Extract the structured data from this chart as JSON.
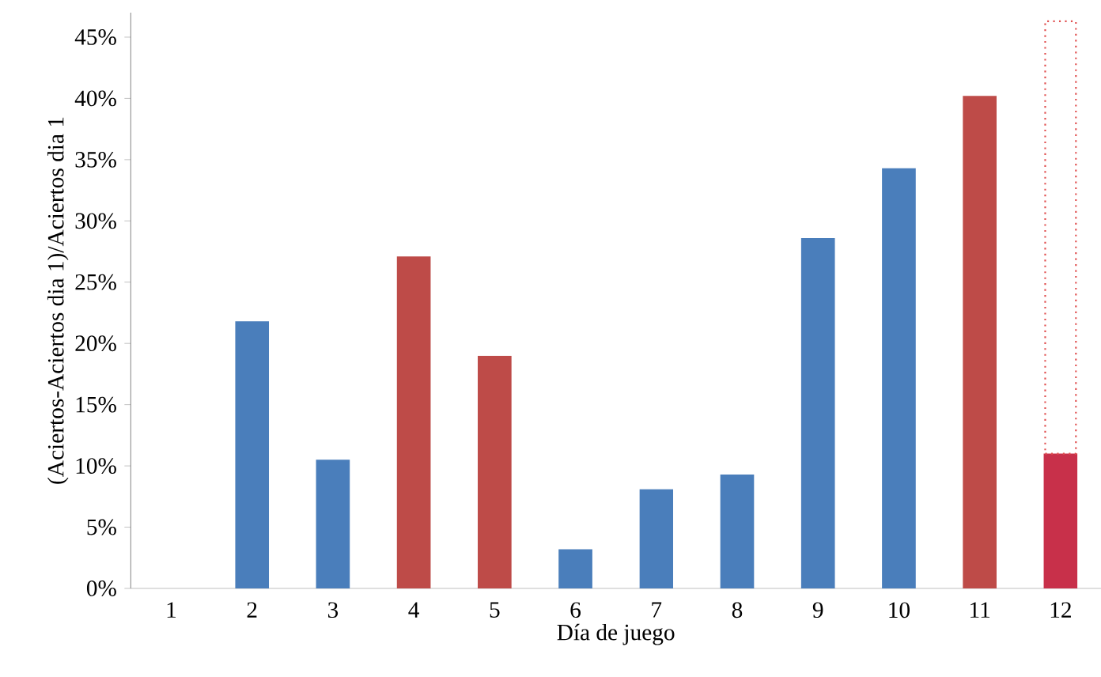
{
  "chart_data": {
    "type": "bar",
    "stacked": true,
    "xlabel": "Día de juego",
    "ylabel": "(Aciertos-Aciertos dia 1)/Aciertos dia 1",
    "categories": [
      "1",
      "2",
      "3",
      "4",
      "5",
      "6",
      "7",
      "8",
      "9",
      "10",
      "11",
      "12"
    ],
    "series": [
      {
        "colors": [
          "#4a7ebb",
          "#4a7ebb",
          "#4a7ebb",
          "#be4b48",
          "#be4b48",
          "#4a7ebb",
          "#4a7ebb",
          "#4a7ebb",
          "#4a7ebb",
          "#4a7ebb",
          "#be4b48",
          "#c8304a"
        ],
        "values": [
          0,
          21.8,
          10.5,
          27.1,
          19.0,
          3.2,
          8.1,
          9.3,
          28.6,
          34.3,
          40.2,
          11.0
        ]
      },
      {
        "color": "#e05050",
        "line_style": "dotted",
        "values": [
          null,
          null,
          null,
          null,
          null,
          null,
          null,
          null,
          null,
          null,
          null,
          35.3
        ]
      }
    ],
    "ylim": [
      0,
      47
    ],
    "yticks": [
      {
        "value": 0,
        "label": "0%"
      },
      {
        "value": 5,
        "label": "5%"
      },
      {
        "value": 10,
        "label": "10%"
      },
      {
        "value": 15,
        "label": "15%"
      },
      {
        "value": 20,
        "label": "20%"
      },
      {
        "value": 25,
        "label": "25%"
      },
      {
        "value": 30,
        "label": "30%"
      },
      {
        "value": 35,
        "label": "35%"
      },
      {
        "value": 40,
        "label": "40%"
      },
      {
        "value": 45,
        "label": "45%"
      }
    ],
    "grid": false
  }
}
